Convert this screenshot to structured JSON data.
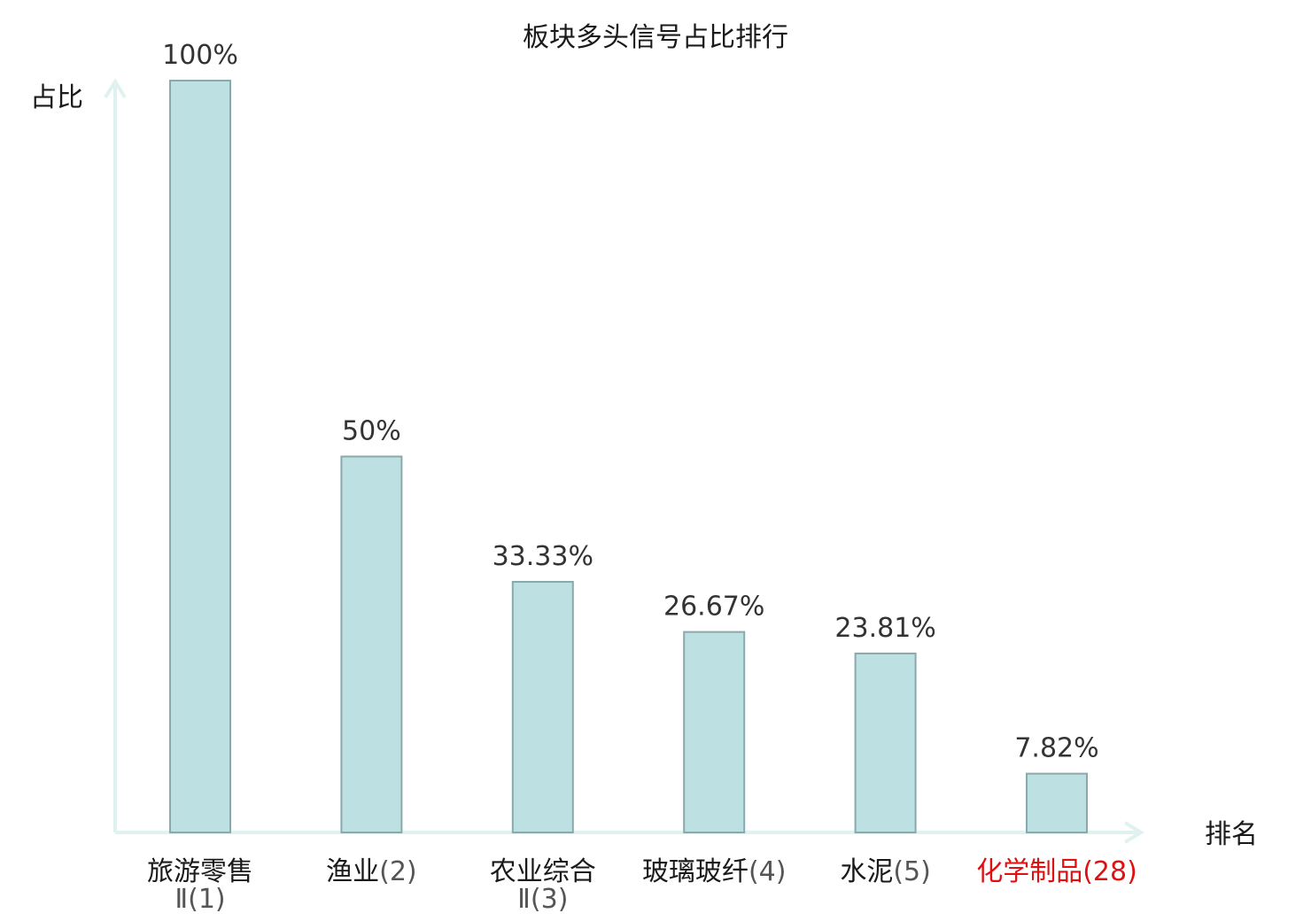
{
  "chart_data": {
    "type": "bar",
    "title": "板块多头信号占比排行",
    "ylabel": "占比",
    "xlabel": "排名",
    "ylim": [
      0,
      100
    ],
    "categories": [
      {
        "name": "旅游零售",
        "name_line2": "Ⅱ",
        "rank": "(1)",
        "highlight": false
      },
      {
        "name": "渔业",
        "name_line2": "",
        "rank": "(2)",
        "highlight": false
      },
      {
        "name": "农业综合",
        "name_line2": "Ⅱ",
        "rank": "(3)",
        "highlight": false
      },
      {
        "name": "玻璃玻纤",
        "name_line2": "",
        "rank": "(4)",
        "highlight": false
      },
      {
        "name": "水泥",
        "name_line2": "",
        "rank": "(5)",
        "highlight": false
      },
      {
        "name": "化学制品",
        "name_line2": "",
        "rank": "(28)",
        "highlight": true
      }
    ],
    "values": [
      100,
      50,
      33.33,
      26.67,
      23.81,
      7.82
    ],
    "value_labels": [
      "100%",
      "50%",
      "33.33%",
      "26.67%",
      "23.81%",
      "7.82%"
    ],
    "grid": false,
    "colors": {
      "bar_fill": "#bde0e3",
      "bar_stroke": "#8aa9ac",
      "axis": "#dff2ef",
      "label": "#1a1a1a",
      "rank": "#555555",
      "highlight": "#e01010"
    }
  }
}
